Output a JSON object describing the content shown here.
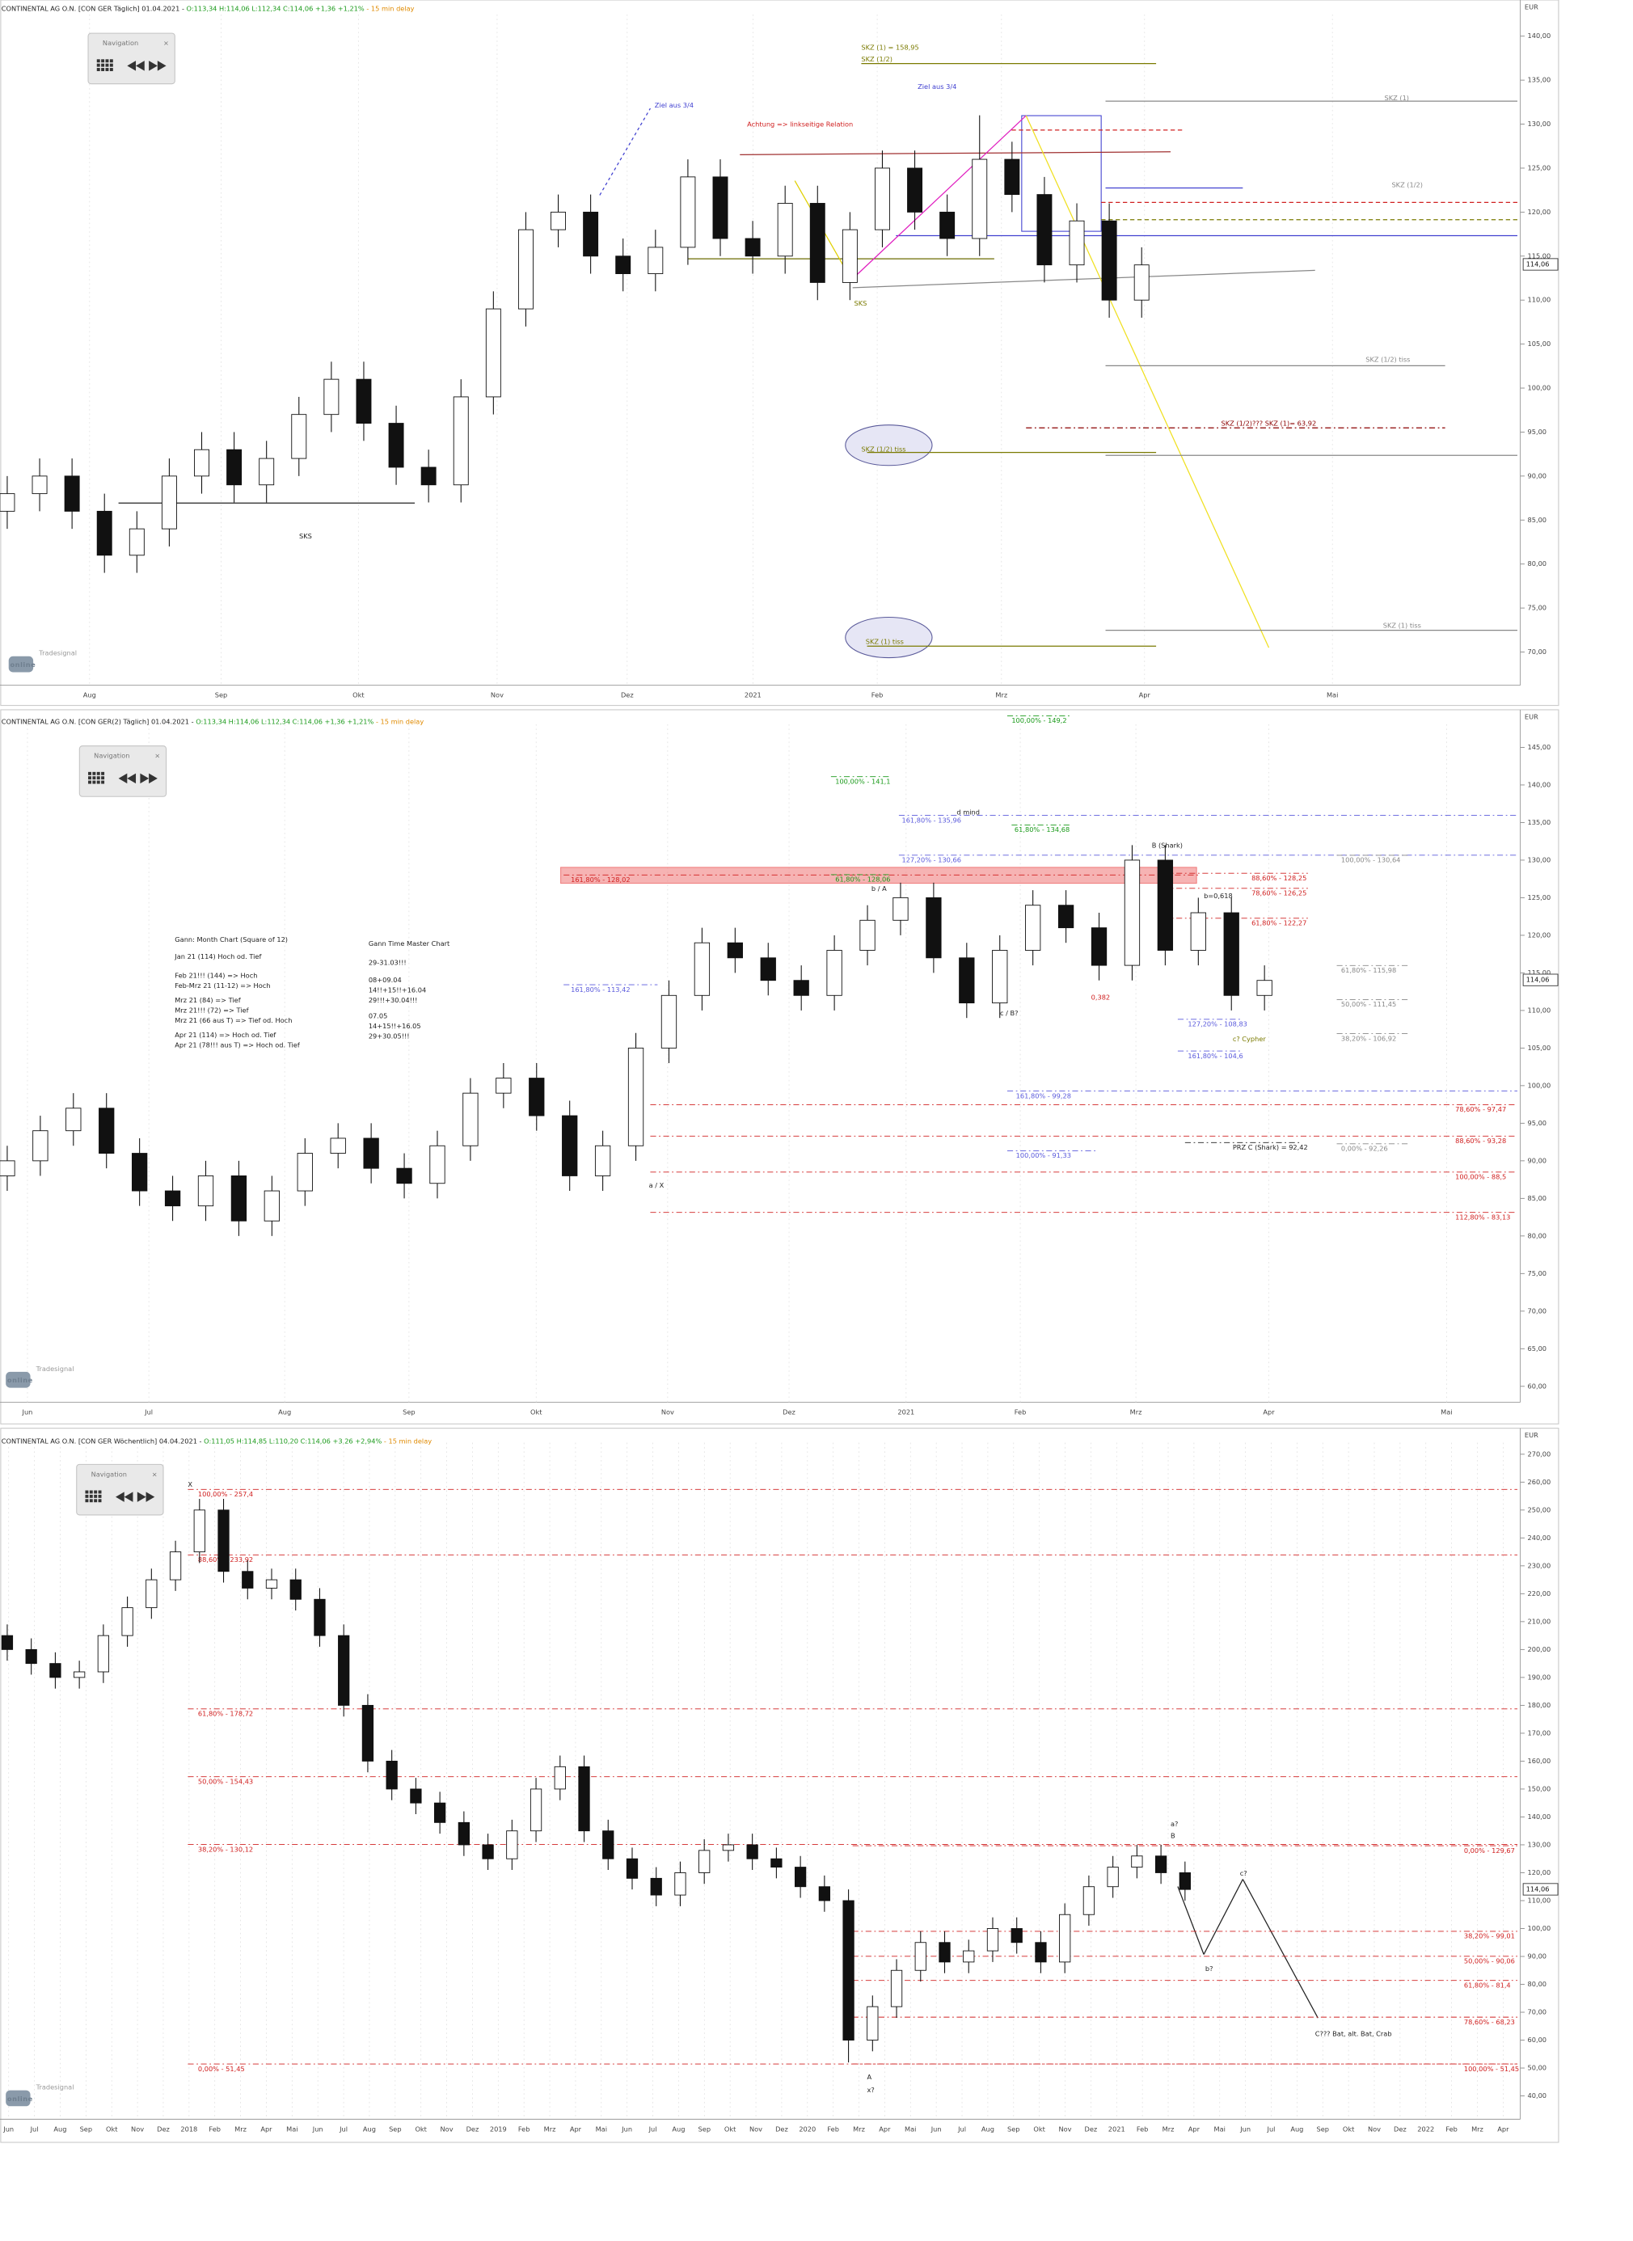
{
  "ui": {
    "navigation": "Navigation",
    "logo_small": "Tradesignal",
    "logo": "online"
  },
  "chart_data": [
    {
      "type": "candlestick",
      "title": "CONTINENTAL AG O.N. [CON GER Täglich] 01.04.2021 - ",
      "quote": "O:113,34 H:114,06 L:112,34 C:114,06 +1,36 +1,21%",
      "delay": " - 15 min delay",
      "unit": "EUR",
      "x_labels": [
        "Aug",
        "Sep",
        "Okt",
        "Nov",
        "Dez",
        "2021",
        "Feb",
        "Mrz",
        "Apr",
        "Mai"
      ],
      "open": [
        86,
        88,
        90,
        86,
        81,
        84,
        90,
        93,
        89,
        92,
        97,
        101,
        96,
        91,
        89,
        99,
        109,
        118,
        120,
        115,
        113,
        116,
        124,
        117,
        115,
        121,
        112,
        118,
        125,
        120,
        117,
        126,
        122,
        114,
        119,
        110
      ],
      "high": [
        90,
        92,
        92,
        88,
        86,
        92,
        95,
        95,
        94,
        99,
        103,
        103,
        98,
        93,
        101,
        111,
        120,
        122,
        122,
        117,
        118,
        126,
        126,
        119,
        123,
        123,
        120,
        127,
        127,
        122,
        131,
        128,
        124,
        121,
        121,
        116
      ],
      "low": [
        84,
        86,
        84,
        79,
        79,
        82,
        88,
        87,
        87,
        90,
        95,
        94,
        89,
        87,
        87,
        97,
        107,
        116,
        113,
        111,
        111,
        114,
        115,
        113,
        113,
        110,
        110,
        116,
        118,
        115,
        115,
        120,
        112,
        112,
        108,
        108
      ],
      "close": [
        88,
        90,
        86,
        81,
        84,
        90,
        93,
        89,
        92,
        97,
        101,
        96,
        91,
        89,
        99,
        109,
        118,
        120,
        115,
        113,
        116,
        124,
        117,
        115,
        121,
        112,
        118,
        125,
        120,
        117,
        126,
        122,
        114,
        119,
        110,
        114
      ],
      "ylim": [
        67,
        144
      ],
      "yticks": [
        {
          "value": 70,
          "label": "70,00"
        },
        {
          "value": 75,
          "label": "75,00"
        },
        {
          "value": 80,
          "label": "80,00"
        },
        {
          "value": 85,
          "label": "85,00"
        },
        {
          "value": 90,
          "label": "90,00"
        },
        {
          "value": 95,
          "label": "95,00"
        },
        {
          "value": 100,
          "label": "100,00"
        },
        {
          "value": 105,
          "label": "105,00"
        },
        {
          "value": 110,
          "label": "110,00"
        },
        {
          "value": 115,
          "label": "115,00"
        },
        {
          "value": 120,
          "label": "120,00"
        },
        {
          "value": 125,
          "label": "125,00"
        },
        {
          "value": 130,
          "label": "130,00"
        },
        {
          "value": 135,
          "label": "135,00"
        },
        {
          "value": 140,
          "label": "140,00"
        }
      ],
      "grid": false,
      "last": {
        "value": 114.06,
        "label": "114,06"
      },
      "levels": [],
      "notes": [
        "SKZ (1) = 158,95",
        "SKZ (1/2)",
        "Ziel aus 3/4",
        "Ziel aus 3/4",
        "Achtung => linkseitige Relation",
        "SKZ (1)",
        "SKZ (1/2)",
        "SKZ (1/2) tiss",
        "SKZ (1/2)??? SKZ (1)= 63,92",
        "SKZ (1/2) tiss",
        "SKZ (1) tiss",
        "SKZ (1) tiss",
        "SKS",
        "SKS"
      ]
    },
    {
      "type": "candlestick",
      "title": "CONTINENTAL AG O.N. [CON GER(2) Täglich] 01.04.2021 - ",
      "quote": "O:113,34 H:114,06 L:112,34 C:114,06 +1,36 +1,21%",
      "delay": " - 15 min delay",
      "unit": "EUR",
      "x_labels": [
        "Jun",
        "Jul",
        "Aug",
        "Sep",
        "Okt",
        "Nov",
        "Dez",
        "2021",
        "Feb",
        "Mrz",
        "Apr",
        "Mai"
      ],
      "open": [
        88,
        90,
        94,
        97,
        91,
        86,
        84,
        88,
        82,
        86,
        91,
        93,
        89,
        87,
        92,
        99,
        101,
        96,
        88,
        92,
        105,
        112,
        119,
        117,
        114,
        112,
        118,
        122,
        125,
        117,
        111,
        118,
        124,
        121,
        116,
        130,
        118,
        123,
        112
      ],
      "high": [
        92,
        96,
        99,
        99,
        93,
        88,
        90,
        90,
        88,
        93,
        95,
        95,
        91,
        94,
        101,
        103,
        103,
        98,
        94,
        107,
        114,
        121,
        121,
        119,
        116,
        120,
        124,
        127,
        127,
        119,
        120,
        126,
        126,
        123,
        132,
        132,
        125,
        125,
        116
      ],
      "low": [
        86,
        88,
        92,
        89,
        84,
        82,
        82,
        80,
        80,
        84,
        89,
        87,
        85,
        85,
        90,
        97,
        94,
        86,
        86,
        90,
        103,
        110,
        115,
        112,
        110,
        110,
        116,
        120,
        115,
        109,
        109,
        116,
        119,
        114,
        114,
        116,
        116,
        110,
        110
      ],
      "close": [
        90,
        94,
        97,
        91,
        86,
        84,
        88,
        82,
        86,
        91,
        93,
        89,
        87,
        92,
        99,
        101,
        96,
        88,
        92,
        105,
        112,
        119,
        117,
        114,
        112,
        118,
        122,
        125,
        117,
        111,
        118,
        124,
        121,
        116,
        130,
        118,
        123,
        112,
        114
      ],
      "ylim": [
        58,
        148
      ],
      "yticks": [
        {
          "value": 60,
          "label": "60,00"
        },
        {
          "value": 65,
          "label": "65,00"
        },
        {
          "value": 70,
          "label": "70,00"
        },
        {
          "value": 75,
          "label": "75,00"
        },
        {
          "value": 80,
          "label": "80,00"
        },
        {
          "value": 85,
          "label": "85,00"
        },
        {
          "value": 90,
          "label": "90,00"
        },
        {
          "value": 95,
          "label": "95,00"
        },
        {
          "value": 100,
          "label": "100,00"
        },
        {
          "value": 105,
          "label": "105,00"
        },
        {
          "value": 110,
          "label": "110,00"
        },
        {
          "value": 115,
          "label": "115,00"
        },
        {
          "value": 120,
          "label": "120,00"
        },
        {
          "value": 125,
          "label": "125,00"
        },
        {
          "value": 130,
          "label": "130,00"
        },
        {
          "value": 135,
          "label": "135,00"
        },
        {
          "value": 140,
          "label": "140,00"
        },
        {
          "value": 145,
          "label": "145,00"
        }
      ],
      "grid": false,
      "last": {
        "value": 114.06,
        "label": "114,06"
      },
      "levels": [
        {
          "value": 149.2,
          "label": "100,00% - 149,2",
          "color": "#1a9a1a"
        },
        {
          "value": 141.1,
          "label": "100,00% - 141,1",
          "color": "#1a9a1a"
        },
        {
          "value": 135.96,
          "label": "161,80% - 135,96",
          "color": "#5a5adc"
        },
        {
          "value": 134.68,
          "label": "61,80% - 134,68",
          "color": "#1a9a1a"
        },
        {
          "value": 130.66,
          "label": "127,20% - 130,66",
          "color": "#5a5adc"
        },
        {
          "value": 130.64,
          "label": "100,00% - 130,64",
          "color": "#888888"
        },
        {
          "value": 128.02,
          "label": "161,80% - 128,02",
          "color": "#d02020"
        },
        {
          "value": 128.06,
          "label": "61,80% - 128,06",
          "color": "#1a9a1a"
        },
        {
          "value": 128.25,
          "label": "88,60% - 128,25",
          "color": "#d02020"
        },
        {
          "value": 126.25,
          "label": "78,60% - 126,25",
          "color": "#d02020"
        },
        {
          "value": 122.27,
          "label": "61,80% - 122,27",
          "color": "#d02020"
        },
        {
          "value": 115.98,
          "label": "61,80% - 115,98",
          "color": "#888888"
        },
        {
          "value": 113.42,
          "label": "161,80% - 113,42",
          "color": "#5a5adc"
        },
        {
          "value": 111.45,
          "label": "50,00% - 111,45",
          "color": "#888888"
        },
        {
          "value": 108.83,
          "label": "127,20% - 108,83",
          "color": "#5a5adc"
        },
        {
          "value": 106.92,
          "label": "38,20% - 106,92",
          "color": "#888888"
        },
        {
          "value": 104.6,
          "label": "161,80% - 104,6",
          "color": "#5a5adc"
        },
        {
          "value": 99.28,
          "label": "161,80% - 99,28",
          "color": "#5a5adc"
        },
        {
          "value": 97.47,
          "label": "78,60% - 97,47",
          "color": "#d02020"
        },
        {
          "value": 93.28,
          "label": "88,60% - 93,28",
          "color": "#d02020"
        },
        {
          "value": 92.26,
          "label": "0,00% - 92,26",
          "color": "#888888"
        },
        {
          "value": 92.42,
          "label": "PRZ C (Shark) = 92,42",
          "color": "#222222"
        },
        {
          "value": 91.33,
          "label": "100,00% - 91,33",
          "color": "#5a5adc"
        },
        {
          "value": 88.5,
          "label": "100,00% - 88,5",
          "color": "#d02020"
        },
        {
          "value": 83.13,
          "label": "112,80% - 83,13",
          "color": "#d02020"
        }
      ],
      "notes": [
        "d mind",
        "B (Shark)",
        "b / A",
        "b=0,618",
        "0,382",
        "c / B?",
        "a / X",
        "c? Cypher",
        "Gann: Month Chart (Square of 12)",
        "Jan 21 (114) Hoch od. Tief",
        "Feb 21!!! (144) => Hoch",
        "Feb-Mrz 21 (11-12) => Hoch",
        "Mrz 21 (84) => Tief",
        "Mrz 21!!! (72) => Tief",
        "Mrz 21 (66 aus T) => Tief od. Hoch",
        "Apr 21 (114) => Hoch od. Tief",
        "Apr 21 (78!!! aus T) => Hoch od. Tief",
        "Gann Time Master Chart",
        "29-31.03!!!",
        "08+09.04",
        "14!!+15!!+16.04",
        "29!!!+30.04!!!",
        "07.05",
        "14+15!!+16.05",
        "29+30.05!!!"
      ]
    },
    {
      "type": "candlestick",
      "title": "CONTINENTAL AG O.N. [CON GER Wöchentlich] 04.04.2021 - ",
      "quote": "O:111,05 H:114,85 L:110,20 C:114,06 +3,26 +2,94%",
      "delay": " - 15 min delay",
      "unit": "EUR",
      "x_labels": [
        "Jun",
        "Jul",
        "Aug",
        "Sep",
        "Okt",
        "Nov",
        "Dez",
        "2018",
        "Feb",
        "Mrz",
        "Apr",
        "Mai",
        "Jun",
        "Jul",
        "Aug",
        "Sep",
        "Okt",
        "Nov",
        "Dez",
        "2019",
        "Feb",
        "Mrz",
        "Apr",
        "Mai",
        "Jun",
        "Jul",
        "Aug",
        "Sep",
        "Okt",
        "Nov",
        "Dez",
        "2020",
        "Feb",
        "Mrz",
        "Apr",
        "Mai",
        "Jun",
        "Jul",
        "Aug",
        "Sep",
        "Okt",
        "Nov",
        "Dez",
        "2021",
        "Feb",
        "Mrz",
        "Apr",
        "Mai",
        "Jun",
        "Jul",
        "Aug",
        "Sep",
        "Okt",
        "Nov",
        "Dez",
        "2022",
        "Feb",
        "Mrz",
        "Apr"
      ],
      "open": [
        205,
        200,
        195,
        190,
        192,
        205,
        215,
        225,
        235,
        250,
        228,
        222,
        225,
        218,
        205,
        180,
        160,
        150,
        145,
        138,
        130,
        125,
        135,
        150,
        158,
        135,
        125,
        118,
        112,
        120,
        128,
        130,
        125,
        122,
        115,
        110,
        60,
        72,
        85,
        95,
        88,
        92,
        100,
        95,
        88,
        105,
        115,
        122,
        126,
        120
      ],
      "high": [
        209,
        204,
        199,
        196,
        209,
        219,
        229,
        239,
        254,
        254,
        232,
        229,
        229,
        222,
        209,
        184,
        164,
        154,
        149,
        142,
        134,
        139,
        154,
        162,
        162,
        139,
        129,
        122,
        124,
        132,
        134,
        134,
        129,
        126,
        119,
        114,
        76,
        89,
        99,
        99,
        96,
        104,
        104,
        99,
        109,
        119,
        126,
        130,
        130,
        124
      ],
      "low": [
        196,
        191,
        186,
        186,
        188,
        201,
        211,
        221,
        231,
        224,
        218,
        218,
        214,
        201,
        176,
        156,
        146,
        141,
        134,
        126,
        121,
        121,
        131,
        146,
        131,
        121,
        114,
        108,
        108,
        116,
        124,
        121,
        118,
        111,
        106,
        52,
        56,
        68,
        81,
        84,
        84,
        88,
        91,
        84,
        84,
        101,
        111,
        118,
        116,
        110
      ],
      "close": [
        200,
        195,
        190,
        192,
        205,
        215,
        225,
        235,
        250,
        228,
        222,
        225,
        218,
        205,
        180,
        160,
        150,
        145,
        138,
        130,
        125,
        135,
        150,
        158,
        135,
        125,
        118,
        112,
        120,
        128,
        130,
        125,
        122,
        115,
        110,
        60,
        72,
        85,
        95,
        88,
        92,
        100,
        95,
        88,
        105,
        115,
        122,
        126,
        120,
        114
      ],
      "ylim": [
        36,
        276
      ],
      "yticks": [
        {
          "value": 40,
          "label": "40,00"
        },
        {
          "value": 50,
          "label": "50,00"
        },
        {
          "value": 60,
          "label": "60,00"
        },
        {
          "value": 70,
          "label": "70,00"
        },
        {
          "value": 80,
          "label": "80,00"
        },
        {
          "value": 90,
          "label": "90,00"
        },
        {
          "value": 100,
          "label": "100,00"
        },
        {
          "value": 110,
          "label": "110,00"
        },
        {
          "value": 120,
          "label": "120,00"
        },
        {
          "value": 130,
          "label": "130,00"
        },
        {
          "value": 140,
          "label": "140,00"
        },
        {
          "value": 150,
          "label": "150,00"
        },
        {
          "value": 160,
          "label": "160,00"
        },
        {
          "value": 170,
          "label": "170,00"
        },
        {
          "value": 180,
          "label": "180,00"
        },
        {
          "value": 190,
          "label": "190,00"
        },
        {
          "value": 200,
          "label": "200,00"
        },
        {
          "value": 210,
          "label": "210,00"
        },
        {
          "value": 220,
          "label": "220,00"
        },
        {
          "value": 230,
          "label": "230,00"
        },
        {
          "value": 240,
          "label": "240,00"
        },
        {
          "value": 250,
          "label": "250,00"
        },
        {
          "value": 260,
          "label": "260,00"
        },
        {
          "value": 270,
          "label": "270,00"
        }
      ],
      "grid": false,
      "last": {
        "value": 114.06,
        "label": "114,06"
      },
      "levels": [
        {
          "value": 257.4,
          "label": "100,00% - 257,4",
          "color": "#d02020"
        },
        {
          "value": 233.92,
          "label": "88,60% - 233,92",
          "color": "#d02020"
        },
        {
          "value": 178.72,
          "label": "61,80% - 178,72",
          "color": "#d02020"
        },
        {
          "value": 154.43,
          "label": "50,00% - 154,43",
          "color": "#d02020"
        },
        {
          "value": 130.12,
          "label": "38,20% - 130,12",
          "color": "#d02020"
        },
        {
          "value": 51.45,
          "label": "0,00% - 51,45",
          "color": "#d02020"
        },
        {
          "value": 129.67,
          "label": "0,00% - 129,67",
          "color": "#d02020"
        },
        {
          "value": 99.01,
          "label": "38,20% - 99,01",
          "color": "#d02020"
        },
        {
          "value": 90.06,
          "label": "50,00% - 90,06",
          "color": "#d02020"
        },
        {
          "value": 81.4,
          "label": "61,80% - 81,4",
          "color": "#d02020"
        },
        {
          "value": 68.23,
          "label": "78,60% - 68,23",
          "color": "#d02020"
        },
        {
          "value": 51.45,
          "label": "100,00% - 51,45",
          "color": "#d02020"
        }
      ],
      "notes": [
        "X",
        "A",
        "x?",
        "a?",
        "B",
        "b?",
        "c?",
        "C??? Bat, alt. Bat, Crab"
      ]
    }
  ]
}
